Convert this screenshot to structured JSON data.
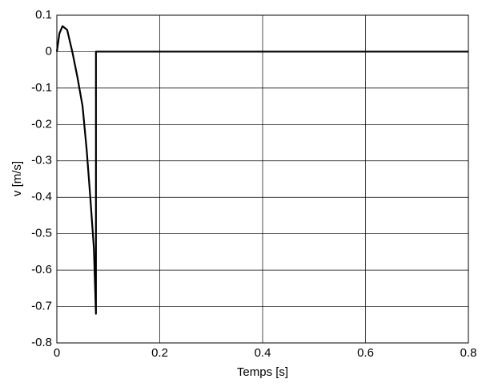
{
  "chart_data": {
    "type": "line",
    "xlabel": "Temps [s]",
    "ylabel": "v [m/s]",
    "x": [
      0,
      0.005,
      0.011,
      0.02,
      0.03,
      0.04,
      0.05,
      0.058,
      0.065,
      0.072,
      0.076,
      0.076,
      0.8
    ],
    "series": [
      {
        "color": "#000000",
        "values": [
          0,
          0.05,
          0.07,
          0.06,
          0.0,
          -0.07,
          -0.15,
          -0.27,
          -0.4,
          -0.54,
          -0.72,
          0,
          0
        ]
      }
    ],
    "xlim": [
      0,
      0.8
    ],
    "xticks": [
      0,
      0.2,
      0.4,
      0.6,
      0.8
    ],
    "ylim": [
      -0.8,
      0.1
    ],
    "yticks": [
      0.1,
      0,
      -0.1,
      -0.2,
      -0.3,
      -0.4,
      -0.5,
      -0.6,
      -0.7,
      -0.8
    ],
    "grid": true
  }
}
